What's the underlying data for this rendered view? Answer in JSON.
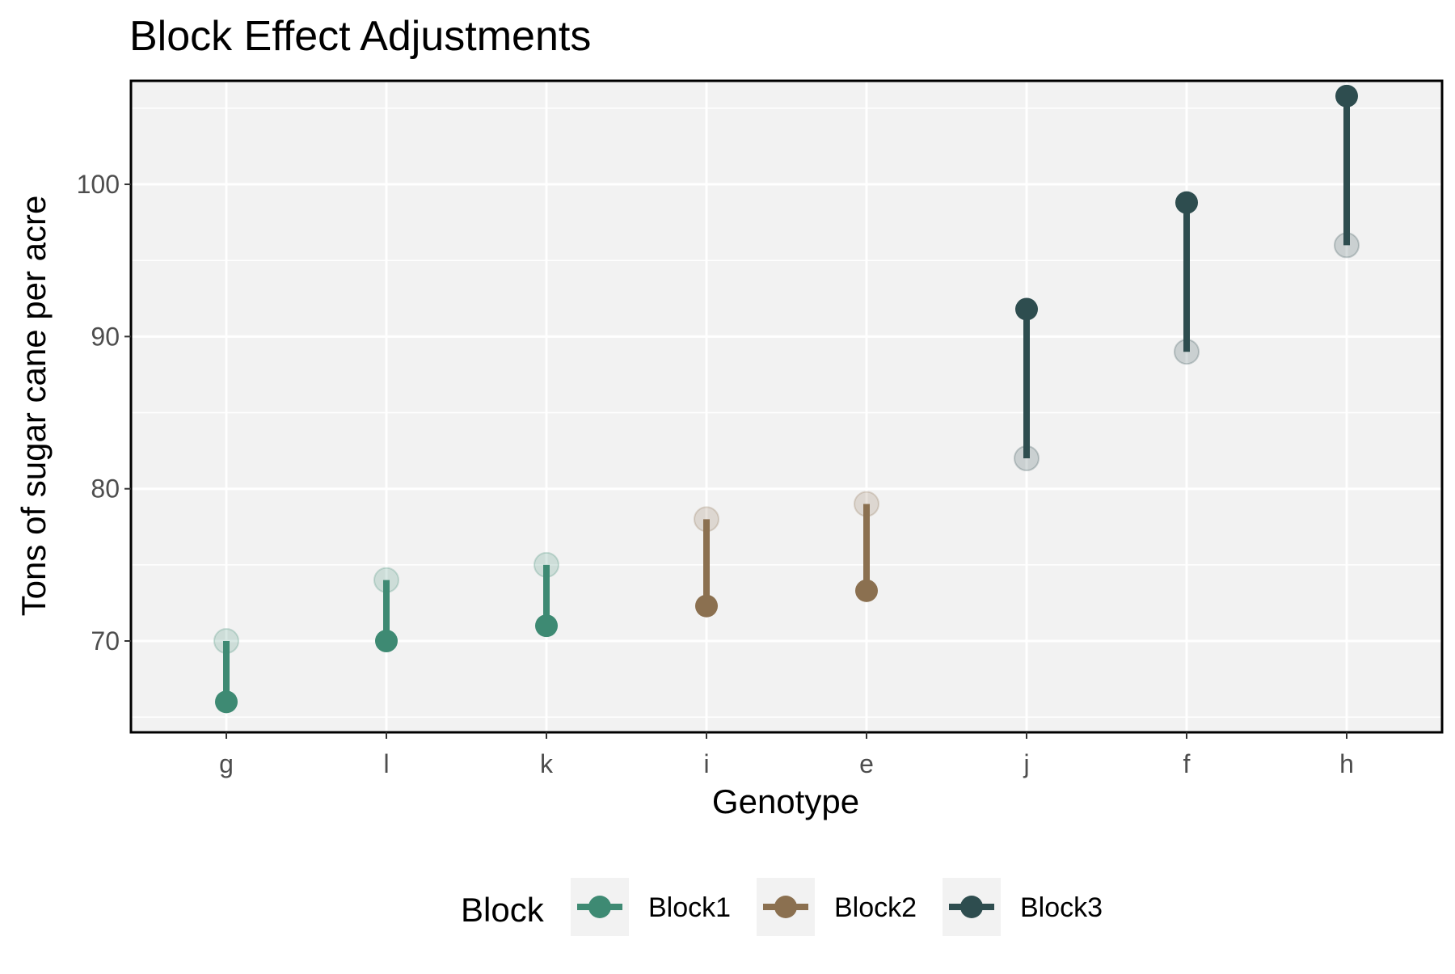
{
  "chart_data": {
    "type": "scatter",
    "title": "Block Effect Adjustments",
    "xlabel": "Genotype",
    "ylabel": "Tons of sugar cane per acre",
    "categories": [
      "g",
      "l",
      "k",
      "i",
      "e",
      "j",
      "f",
      "h"
    ],
    "ylim": [
      64,
      106.8
    ],
    "yticks": [
      70,
      80,
      90,
      100
    ],
    "grid": true,
    "legend": {
      "title": "Block",
      "position": "bottom",
      "entries": [
        {
          "label": "Block1",
          "color": "#3E8A73"
        },
        {
          "label": "Block2",
          "color": "#8B7050"
        },
        {
          "label": "Block3",
          "color": "#2E4D4F"
        }
      ]
    },
    "series": [
      {
        "name": "Block1",
        "color": "#3E8A73",
        "points": [
          {
            "x": "g",
            "observed": 70,
            "adjusted": 66
          },
          {
            "x": "l",
            "observed": 74,
            "adjusted": 70
          },
          {
            "x": "k",
            "observed": 75,
            "adjusted": 71
          }
        ]
      },
      {
        "name": "Block2",
        "color": "#8B7050",
        "points": [
          {
            "x": "i",
            "observed": 78,
            "adjusted": 72.3
          },
          {
            "x": "e",
            "observed": 79,
            "adjusted": 73.3
          }
        ]
      },
      {
        "name": "Block3",
        "color": "#2E4D4F",
        "points": [
          {
            "x": "j",
            "observed": 82,
            "adjusted": 91.8
          },
          {
            "x": "f",
            "observed": 89,
            "adjusted": 98.8
          },
          {
            "x": "h",
            "observed": 96,
            "adjusted": 105.8
          }
        ]
      }
    ]
  }
}
